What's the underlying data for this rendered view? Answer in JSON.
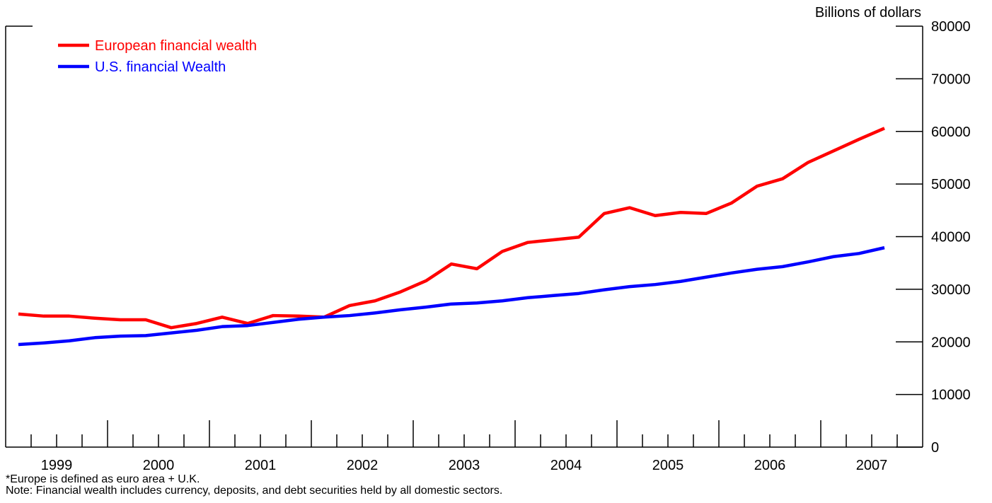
{
  "chart_data": {
    "type": "line",
    "y_axis_label": "Billions of dollars",
    "x": [
      1999.125,
      1999.375,
      1999.625,
      1999.875,
      2000.125,
      2000.375,
      2000.625,
      2000.875,
      2001.125,
      2001.375,
      2001.625,
      2001.875,
      2002.125,
      2002.375,
      2002.625,
      2002.875,
      2003.125,
      2003.375,
      2003.625,
      2003.875,
      2004.125,
      2004.375,
      2004.625,
      2004.875,
      2005.125,
      2005.375,
      2005.625,
      2005.875,
      2006.125,
      2006.375,
      2006.625,
      2006.875,
      2007.125,
      2007.375,
      2007.625
    ],
    "series": [
      {
        "name": "European financial wealth",
        "color": "#ff0000",
        "values": [
          25300,
          24900,
          24900,
          24500,
          24200,
          24200,
          22700,
          23500,
          24700,
          23500,
          25000,
          24900,
          24700,
          26900,
          27800,
          29500,
          31600,
          34800,
          33900,
          37200,
          38900,
          39400,
          39900,
          44400,
          45500,
          44000,
          44600,
          44400,
          46400,
          49600,
          51000,
          54100,
          56300,
          58500,
          60600
        ]
      },
      {
        "name": "U.S. financial Wealth",
        "color": "#0000ff",
        "values": [
          19500,
          19800,
          20200,
          20800,
          21100,
          21200,
          21700,
          22200,
          22900,
          23100,
          23700,
          24300,
          24700,
          25000,
          25500,
          26100,
          26600,
          27200,
          27400,
          27800,
          28400,
          28800,
          29200,
          29900,
          30500,
          30900,
          31500,
          32300,
          33100,
          33800,
          34300,
          35200,
          36200,
          36800,
          37900
        ]
      }
    ],
    "xlim": [
      1999,
      2008
    ],
    "xticks": [
      {
        "value": 1999.5,
        "label": "1999"
      },
      {
        "value": 2000.5,
        "label": "2000"
      },
      {
        "value": 2001.5,
        "label": "2001"
      },
      {
        "value": 2002.5,
        "label": "2002"
      },
      {
        "value": 2003.5,
        "label": "2003"
      },
      {
        "value": 2004.5,
        "label": "2004"
      },
      {
        "value": 2005.5,
        "label": "2005"
      },
      {
        "value": 2006.5,
        "label": "2006"
      },
      {
        "value": 2007.5,
        "label": "2007"
      }
    ],
    "ylim": [
      0,
      80000
    ],
    "yticks": [
      0,
      10000,
      20000,
      30000,
      40000,
      50000,
      60000,
      70000,
      80000
    ],
    "legend": "upper left",
    "notes": [
      "*Europe is defined as euro area + U.K.",
      "Note: Financial wealth includes currency, deposits, and debt securities held by all domestic sectors."
    ]
  }
}
